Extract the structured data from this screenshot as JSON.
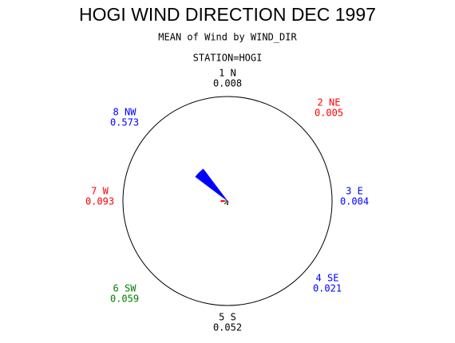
{
  "chart_data": {
    "type": "windrose",
    "title": "HOGI WIND DIRECTION DEC 1997",
    "subtitle": "MEAN of Wind by WIND_DIR",
    "station_label": "STATION=HOGI",
    "categories": [
      "1 N",
      "2 NE",
      "3 E",
      "4 SE",
      "5 S",
      "6 SW",
      "7 W",
      "8 NW"
    ],
    "values": [
      0.008,
      0.005,
      0.004,
      0.021,
      0.052,
      0.059,
      0.093,
      0.573
    ],
    "colors": [
      "#000000",
      "#ff0000",
      "#0000ff",
      "#0000ff",
      "#000000",
      "#008000",
      "#ff0000",
      "#0000ff"
    ]
  }
}
